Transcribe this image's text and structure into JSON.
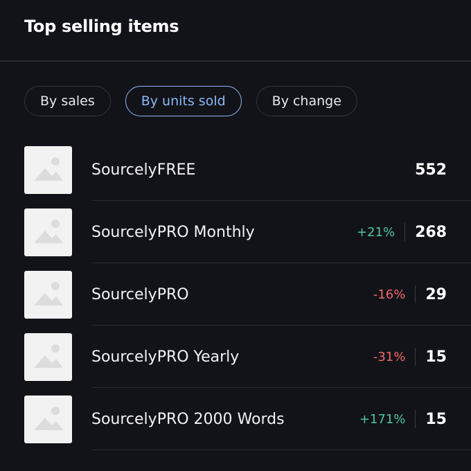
{
  "header": {
    "title": "Top selling items"
  },
  "tabs": [
    {
      "label": "By sales",
      "selected": false
    },
    {
      "label": "By units sold",
      "selected": true
    },
    {
      "label": "By change",
      "selected": false
    }
  ],
  "items": [
    {
      "name": "SourcelyFREE",
      "units": 552
    },
    {
      "name": "SourcelyPRO Monthly",
      "change": "+21%",
      "trend": "up",
      "units": 268
    },
    {
      "name": "SourcelyPRO",
      "change": "-16%",
      "trend": "down",
      "units": 29
    },
    {
      "name": "SourcelyPRO Yearly",
      "change": "-31%",
      "trend": "down",
      "units": 15
    },
    {
      "name": "SourcelyPRO 2000 Words",
      "change": "+171%",
      "trend": "up",
      "units": 15
    }
  ]
}
